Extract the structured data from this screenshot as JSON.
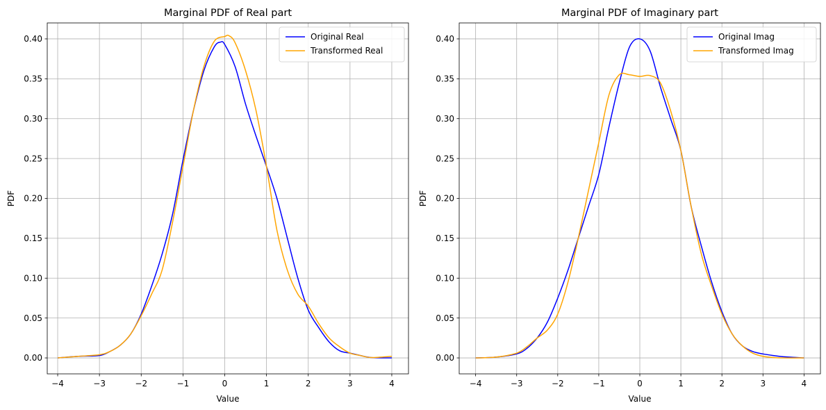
{
  "chart_data": [
    {
      "type": "line",
      "title": "Marginal PDF of Real part",
      "xlabel": "Value",
      "ylabel": "PDF",
      "xlim": [
        -4.25,
        4.4
      ],
      "ylim": [
        -0.02,
        0.42
      ],
      "xticks": [
        -4,
        -3,
        -2,
        -1,
        0,
        1,
        2,
        3,
        4
      ],
      "xtick_labels": [
        "−4",
        "−3",
        "−2",
        "−1",
        "0",
        "1",
        "2",
        "3",
        "4"
      ],
      "yticks": [
        0.0,
        0.05,
        0.1,
        0.15,
        0.2,
        0.25,
        0.3,
        0.35,
        0.4
      ],
      "ytick_labels": [
        "0.00",
        "0.05",
        "0.10",
        "0.15",
        "0.20",
        "0.25",
        "0.30",
        "0.35",
        "0.40"
      ],
      "grid": true,
      "legend_position": "top-right",
      "series": [
        {
          "name": "Original Real",
          "color": "#0000ff",
          "x": [
            -4,
            -3.5,
            -3,
            -2.75,
            -2.5,
            -2.25,
            -2,
            -1.75,
            -1.5,
            -1.25,
            -1,
            -0.75,
            -0.5,
            -0.25,
            -0.1,
            0,
            0.25,
            0.5,
            0.75,
            1,
            1.25,
            1.5,
            1.75,
            2,
            2.25,
            2.5,
            2.75,
            3,
            3.25,
            3.5,
            4
          ],
          "y": [
            0.0,
            0.002,
            0.003,
            0.008,
            0.016,
            0.03,
            0.055,
            0.09,
            0.13,
            0.18,
            0.248,
            0.31,
            0.36,
            0.39,
            0.396,
            0.393,
            0.365,
            0.318,
            0.278,
            0.24,
            0.2,
            0.15,
            0.1,
            0.06,
            0.038,
            0.02,
            0.009,
            0.006,
            0.003,
            0.0005,
            0.0
          ]
        },
        {
          "name": "Transformed Real",
          "color": "#ffa500",
          "x": [
            -4,
            -3.5,
            -3,
            -2.75,
            -2.5,
            -2.25,
            -2,
            -1.75,
            -1.5,
            -1.25,
            -1,
            -0.75,
            -0.5,
            -0.25,
            0,
            0.1,
            0.25,
            0.5,
            0.75,
            1,
            1.25,
            1.5,
            1.75,
            2,
            2.25,
            2.5,
            2.75,
            3,
            3.25,
            3.5,
            4
          ],
          "y": [
            0.0,
            0.002,
            0.004,
            0.008,
            0.016,
            0.03,
            0.053,
            0.08,
            0.11,
            0.17,
            0.24,
            0.31,
            0.365,
            0.397,
            0.403,
            0.404,
            0.395,
            0.36,
            0.31,
            0.24,
            0.16,
            0.11,
            0.08,
            0.065,
            0.043,
            0.025,
            0.014,
            0.006,
            0.003,
            0.0005,
            0.002
          ]
        }
      ]
    },
    {
      "type": "line",
      "title": "Marginal PDF of Imaginary part",
      "xlabel": "Value",
      "ylabel": "PDF",
      "xlim": [
        -4.4,
        4.4
      ],
      "ylim": [
        -0.02,
        0.42
      ],
      "xticks": [
        -4,
        -3,
        -2,
        -1,
        0,
        1,
        2,
        3,
        4
      ],
      "xtick_labels": [
        "−4",
        "−3",
        "−2",
        "−1",
        "0",
        "1",
        "2",
        "3",
        "4"
      ],
      "yticks": [
        0.0,
        0.05,
        0.1,
        0.15,
        0.2,
        0.25,
        0.3,
        0.35,
        0.4
      ],
      "ytick_labels": [
        "0.00",
        "0.05",
        "0.10",
        "0.15",
        "0.20",
        "0.25",
        "0.30",
        "0.35",
        "0.40"
      ],
      "grid": true,
      "legend_position": "top-right",
      "series": [
        {
          "name": "Original Imag",
          "color": "#0000ff",
          "x": [
            -4,
            -3.5,
            -3,
            -2.75,
            -2.5,
            -2.25,
            -2,
            -1.75,
            -1.5,
            -1.25,
            -1,
            -0.75,
            -0.5,
            -0.25,
            0,
            0.25,
            0.5,
            0.75,
            1,
            1.25,
            1.5,
            1.75,
            2,
            2.25,
            2.5,
            2.75,
            3,
            3.25,
            3.5,
            4
          ],
          "y": [
            0.0,
            0.001,
            0.005,
            0.012,
            0.025,
            0.045,
            0.075,
            0.11,
            0.15,
            0.19,
            0.23,
            0.29,
            0.345,
            0.39,
            0.4,
            0.385,
            0.34,
            0.3,
            0.26,
            0.19,
            0.14,
            0.095,
            0.058,
            0.03,
            0.015,
            0.008,
            0.005,
            0.003,
            0.0015,
            0.0
          ]
        },
        {
          "name": "Transformed Imag",
          "color": "#ffa500",
          "x": [
            -4,
            -3.5,
            -3,
            -2.75,
            -2.5,
            -2.25,
            -2,
            -1.75,
            -1.5,
            -1.25,
            -1,
            -0.75,
            -0.5,
            -0.25,
            0,
            0.25,
            0.5,
            0.75,
            1,
            1.25,
            1.5,
            1.75,
            2,
            2.25,
            2.5,
            2.75,
            3,
            3.25,
            3.5,
            4
          ],
          "y": [
            0.0,
            0.001,
            0.006,
            0.014,
            0.025,
            0.035,
            0.055,
            0.095,
            0.15,
            0.21,
            0.27,
            0.33,
            0.355,
            0.355,
            0.353,
            0.354,
            0.345,
            0.31,
            0.26,
            0.19,
            0.13,
            0.09,
            0.055,
            0.03,
            0.015,
            0.006,
            0.002,
            0.0005,
            0.0,
            0.0
          ]
        }
      ]
    }
  ]
}
